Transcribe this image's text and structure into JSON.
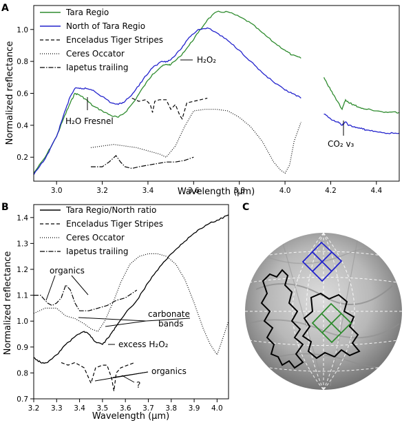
{
  "figure": {
    "panel_labels": {
      "a": "A",
      "b": "B",
      "c": "C"
    },
    "panel_a": {
      "xlabel": "Wavelength (μm)",
      "ylabel": "Normalized reflectance",
      "xticks": [
        "3.0",
        "3.2",
        "3.4",
        "3.6",
        "3.8",
        "4.0",
        "4.2",
        "4.4"
      ],
      "yticks": [
        "0.2",
        "0.4",
        "0.6",
        "0.8",
        "1.0"
      ],
      "legend": [
        "Tara Regio",
        "North of Tara Regio",
        "Enceladus Tiger Stripes",
        "Ceres Occator",
        "Iapetus trailing"
      ],
      "annotations": {
        "h2o": "H₂O Fresnel",
        "h2o2": "H₂O₂",
        "co2": "CO₂ v₃"
      }
    },
    "panel_b": {
      "xlabel": "Wavelength (μm)",
      "ylabel": "Normalized reflectance",
      "xticks": [
        "3.2",
        "3.3",
        "3.4",
        "3.5",
        "3.6",
        "3.7",
        "3.8",
        "3.9",
        "4.0"
      ],
      "yticks": [
        "0.7",
        "0.8",
        "0.9",
        "1.0",
        "1.1",
        "1.2",
        "1.3",
        "1.4"
      ],
      "legend": [
        "Tara Regio/North ratio",
        "Enceladus Tiger Stripes",
        "Ceres Occator",
        "Iapetus trailing"
      ],
      "annotations": {
        "organics_top": "organics",
        "carbonate1": "carbonate",
        "carbonate2": "bands",
        "excess": "excess H₂O₂",
        "organics_bottom": "organics",
        "question": "?"
      }
    }
  },
  "colors": {
    "green": "#2e8b2e",
    "blue": "#2222cc",
    "black": "#000000"
  },
  "chart_data": [
    {
      "type": "line",
      "panel": "A",
      "xlim": [
        2.9,
        4.5
      ],
      "ylim": [
        0.05,
        1.15
      ],
      "series": [
        {
          "name": "Tara Regio",
          "color": "#2e8b2e",
          "style": "solid",
          "x": [
            2.9,
            2.95,
            3.0,
            3.03,
            3.06,
            3.08,
            3.1,
            3.13,
            3.16,
            3.2,
            3.24,
            3.27,
            3.3,
            3.34,
            3.38,
            3.42,
            3.46,
            3.48,
            3.5,
            3.54,
            3.58,
            3.62,
            3.66,
            3.7,
            3.75,
            3.8,
            3.85,
            3.9,
            3.95,
            4.0,
            4.03,
            4.07
          ],
          "y": [
            0.1,
            0.2,
            0.33,
            0.44,
            0.54,
            0.6,
            0.59,
            0.56,
            0.52,
            0.49,
            0.46,
            0.45,
            0.48,
            0.55,
            0.64,
            0.72,
            0.77,
            0.78,
            0.78,
            0.83,
            0.9,
            0.98,
            1.06,
            1.11,
            1.11,
            1.08,
            1.04,
            0.98,
            0.92,
            0.87,
            0.84,
            0.82
          ]
        },
        {
          "name": "North of Tara Regio",
          "color": "#2222cc",
          "style": "solid",
          "x": [
            2.9,
            2.95,
            3.0,
            3.03,
            3.06,
            3.08,
            3.1,
            3.13,
            3.16,
            3.2,
            3.24,
            3.27,
            3.3,
            3.34,
            3.38,
            3.42,
            3.46,
            3.48,
            3.5,
            3.54,
            3.58,
            3.62,
            3.66,
            3.7,
            3.75,
            3.8,
            3.85,
            3.9,
            3.95,
            4.0,
            4.03,
            4.07
          ],
          "y": [
            0.09,
            0.19,
            0.33,
            0.46,
            0.58,
            0.63,
            0.63,
            0.63,
            0.62,
            0.58,
            0.54,
            0.53,
            0.55,
            0.61,
            0.69,
            0.76,
            0.8,
            0.8,
            0.81,
            0.87,
            0.95,
            1.0,
            1.01,
            0.98,
            0.93,
            0.87,
            0.8,
            0.73,
            0.67,
            0.62,
            0.6,
            0.57
          ]
        },
        {
          "name": "Tara Regio",
          "color": "#2e8b2e",
          "style": "solid",
          "x": [
            4.17,
            4.2,
            4.23,
            4.25,
            4.265,
            4.28,
            4.3,
            4.33,
            4.36,
            4.4,
            4.45,
            4.5
          ],
          "y": [
            0.7,
            0.62,
            0.55,
            0.5,
            0.56,
            0.54,
            0.53,
            0.51,
            0.5,
            0.49,
            0.48,
            0.48
          ]
        },
        {
          "name": "North of Tara Regio",
          "color": "#2222cc",
          "style": "solid",
          "x": [
            4.17,
            4.2,
            4.23,
            4.25,
            4.265,
            4.28,
            4.3,
            4.33,
            4.36,
            4.4,
            4.45,
            4.5
          ],
          "y": [
            0.47,
            0.44,
            0.42,
            0.4,
            0.42,
            0.4,
            0.39,
            0.38,
            0.37,
            0.36,
            0.35,
            0.35
          ]
        },
        {
          "name": "Enceladus Tiger Stripes",
          "color": "#000000",
          "style": "dashed",
          "x": [
            3.33,
            3.36,
            3.39,
            3.41,
            3.42,
            3.43,
            3.45,
            3.48,
            3.5,
            3.52,
            3.54,
            3.55,
            3.57,
            3.6,
            3.63,
            3.66
          ],
          "y": [
            0.57,
            0.55,
            0.56,
            0.53,
            0.48,
            0.55,
            0.56,
            0.56,
            0.5,
            0.53,
            0.46,
            0.44,
            0.54,
            0.55,
            0.56,
            0.57
          ]
        },
        {
          "name": "Ceres Occator",
          "color": "#000000",
          "style": "dotted",
          "x": [
            3.15,
            3.2,
            3.25,
            3.3,
            3.35,
            3.4,
            3.45,
            3.48,
            3.52,
            3.56,
            3.6,
            3.65,
            3.7,
            3.75,
            3.8,
            3.85,
            3.9,
            3.95,
            3.98,
            4.0,
            4.02,
            4.04,
            4.07
          ],
          "y": [
            0.26,
            0.27,
            0.28,
            0.27,
            0.26,
            0.24,
            0.22,
            0.2,
            0.27,
            0.39,
            0.49,
            0.5,
            0.5,
            0.49,
            0.45,
            0.39,
            0.3,
            0.17,
            0.12,
            0.1,
            0.15,
            0.3,
            0.42
          ]
        },
        {
          "name": "Iapetus trailing",
          "color": "#000000",
          "style": "dashdot",
          "x": [
            3.15,
            3.2,
            3.23,
            3.26,
            3.28,
            3.3,
            3.33,
            3.36,
            3.4,
            3.44,
            3.48,
            3.52,
            3.56,
            3.6
          ],
          "y": [
            0.14,
            0.14,
            0.17,
            0.21,
            0.17,
            0.14,
            0.13,
            0.14,
            0.15,
            0.16,
            0.17,
            0.17,
            0.18,
            0.2
          ]
        }
      ]
    },
    {
      "type": "line",
      "panel": "B",
      "xlim": [
        3.2,
        4.05
      ],
      "ylim": [
        0.7,
        1.45
      ],
      "series": [
        {
          "name": "Tara Regio/North ratio",
          "color": "#000000",
          "style": "solid",
          "x": [
            3.2,
            3.23,
            3.26,
            3.3,
            3.34,
            3.38,
            3.42,
            3.44,
            3.47,
            3.5,
            3.53,
            3.56,
            3.6,
            3.65,
            3.7,
            3.75,
            3.8,
            3.85,
            3.9,
            3.95,
            4.0,
            4.05
          ],
          "y": [
            0.86,
            0.84,
            0.84,
            0.87,
            0.91,
            0.94,
            0.96,
            0.95,
            0.92,
            0.91,
            0.94,
            0.98,
            1.03,
            1.08,
            1.15,
            1.21,
            1.26,
            1.3,
            1.34,
            1.37,
            1.39,
            1.41
          ]
        },
        {
          "name": "Enceladus Tiger Stripes",
          "color": "#000000",
          "style": "dashed",
          "x": [
            3.32,
            3.35,
            3.38,
            3.42,
            3.44,
            3.45,
            3.47,
            3.5,
            3.52,
            3.54,
            3.55,
            3.56,
            3.58,
            3.61,
            3.64
          ],
          "y": [
            0.84,
            0.83,
            0.84,
            0.82,
            0.78,
            0.76,
            0.82,
            0.83,
            0.83,
            0.78,
            0.73,
            0.8,
            0.82,
            0.83,
            0.84
          ]
        },
        {
          "name": "Ceres Occator",
          "color": "#000000",
          "style": "dotted",
          "x": [
            3.2,
            3.25,
            3.3,
            3.34,
            3.38,
            3.42,
            3.45,
            3.48,
            3.51,
            3.55,
            3.58,
            3.62,
            3.66,
            3.7,
            3.74,
            3.78,
            3.82,
            3.86,
            3.9,
            3.94,
            3.97,
            4.0,
            4.02,
            4.05
          ],
          "y": [
            1.03,
            1.05,
            1.05,
            1.02,
            1.01,
            0.99,
            0.97,
            0.96,
            1.0,
            1.08,
            1.15,
            1.22,
            1.25,
            1.26,
            1.26,
            1.25,
            1.22,
            1.16,
            1.07,
            0.97,
            0.91,
            0.87,
            0.92,
            1.0
          ]
        },
        {
          "name": "Iapetus trailing",
          "color": "#000000",
          "style": "dashdot",
          "x": [
            3.2,
            3.23,
            3.26,
            3.28,
            3.3,
            3.32,
            3.34,
            3.36,
            3.38,
            3.4,
            3.44,
            3.48,
            3.52,
            3.56,
            3.6,
            3.65
          ],
          "y": [
            1.1,
            1.1,
            1.07,
            1.06,
            1.07,
            1.09,
            1.14,
            1.12,
            1.07,
            1.04,
            1.04,
            1.05,
            1.06,
            1.08,
            1.09,
            1.12
          ]
        }
      ]
    }
  ]
}
